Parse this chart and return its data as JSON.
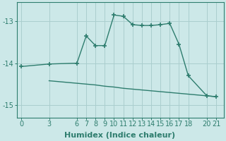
{
  "xlabel": "Humidex (Indice chaleur)",
  "bg_color": "#cce8e8",
  "line_color": "#2e7d6e",
  "grid_color": "#aacece",
  "x_main": [
    0,
    3,
    6,
    7,
    8,
    9,
    10,
    11,
    12,
    13,
    14,
    15,
    16,
    17,
    18,
    20,
    21
  ],
  "y_main": [
    -14.08,
    -14.02,
    -14.0,
    -13.35,
    -13.58,
    -13.58,
    -12.85,
    -12.88,
    -13.08,
    -13.1,
    -13.1,
    -13.08,
    -13.05,
    -13.55,
    -14.3,
    -14.78,
    -14.8
  ],
  "x_lower": [
    3,
    6,
    7,
    8,
    9,
    10,
    11,
    12,
    13,
    14,
    15,
    16,
    17,
    18,
    20,
    21
  ],
  "y_lower": [
    -14.42,
    -14.48,
    -14.5,
    -14.52,
    -14.55,
    -14.57,
    -14.6,
    -14.62,
    -14.64,
    -14.66,
    -14.68,
    -14.7,
    -14.72,
    -14.74,
    -14.78,
    -14.8
  ],
  "ylim": [
    -15.3,
    -12.55
  ],
  "xlim": [
    -0.5,
    21.8
  ],
  "yticks": [
    -15,
    -14,
    -13
  ],
  "xticks": [
    0,
    3,
    6,
    7,
    8,
    9,
    10,
    11,
    12,
    13,
    14,
    15,
    16,
    17,
    18,
    20,
    21
  ],
  "marker": "+",
  "marker_size": 5,
  "marker_ew": 1.2,
  "line_width": 1.0,
  "font_size": 8,
  "tick_font_size": 7
}
